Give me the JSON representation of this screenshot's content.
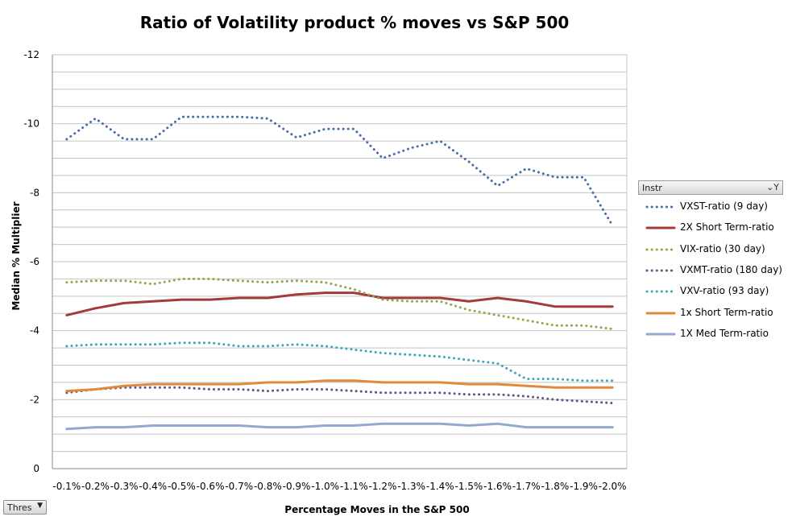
{
  "chart_data": {
    "type": "line",
    "title": "Ratio of  Volatility product % moves vs S&P 500",
    "xlabel": "Percentage  Moves in  the S&P 500",
    "ylabel": "Median % Multiplier",
    "y_axis_reversed": true,
    "ylim": [
      0,
      -12
    ],
    "y_ticks": [
      "-12",
      "-10",
      "-8",
      "-6",
      "-4",
      "-2",
      "0"
    ],
    "grid": true,
    "legend_position": "right",
    "legend_header": "Instr",
    "categories": [
      "-0.1%",
      "-0.2%",
      "-0.3%",
      "-0.4%",
      "-0.5%",
      "-0.6%",
      "-0.7%",
      "-0.8%",
      "-0.9%",
      "-1.0%",
      "-1.1%",
      "-1.2%",
      "-1.3%",
      "-1.4%",
      "-1.5%",
      "-1.6%",
      "-1.7%",
      "-1.8%",
      "-1.9%",
      "-2.0%"
    ],
    "series": [
      {
        "name": "VXST-ratio (9 day)",
        "style": "dotted",
        "color": "#4a6fa8",
        "values": [
          -9.55,
          -10.15,
          -9.55,
          -9.55,
          -10.2,
          -10.2,
          -10.2,
          -10.15,
          -9.6,
          -9.85,
          -9.85,
          -9.0,
          -9.3,
          -9.5,
          -8.9,
          -8.2,
          -8.7,
          -8.45,
          -8.45,
          -7.05
        ]
      },
      {
        "name": "2X Short Term-ratio",
        "style": "solid",
        "color": "#a33b3b",
        "values": [
          -4.45,
          -4.65,
          -4.8,
          -4.85,
          -4.9,
          -4.9,
          -4.95,
          -4.95,
          -5.05,
          -5.1,
          -5.1,
          -4.95,
          -4.95,
          -4.95,
          -4.85,
          -4.95,
          -4.85,
          -4.7,
          -4.7,
          -4.7
        ]
      },
      {
        "name": "VIX-ratio (30 day)",
        "style": "dotted",
        "color": "#92a54a",
        "values": [
          -5.4,
          -5.45,
          -5.45,
          -5.35,
          -5.5,
          -5.5,
          -5.45,
          -5.4,
          -5.45,
          -5.4,
          -5.2,
          -4.9,
          -4.85,
          -4.85,
          -4.6,
          -4.45,
          -4.3,
          -4.15,
          -4.15,
          -4.05
        ]
      },
      {
        "name": "VXMT-ratio (180 day)",
        "style": "dotted",
        "color": "#6a5487",
        "values": [
          -2.2,
          -2.3,
          -2.35,
          -2.35,
          -2.35,
          -2.3,
          -2.3,
          -2.25,
          -2.3,
          -2.3,
          -2.25,
          -2.2,
          -2.2,
          -2.2,
          -2.15,
          -2.15,
          -2.1,
          -2.0,
          -1.95,
          -1.9
        ]
      },
      {
        "name": "VXV-ratio (93 day)",
        "style": "dotted",
        "color": "#3ea7b5",
        "values": [
          -3.55,
          -3.6,
          -3.6,
          -3.6,
          -3.65,
          -3.65,
          -3.55,
          -3.55,
          -3.6,
          -3.55,
          -3.45,
          -3.35,
          -3.3,
          -3.25,
          -3.15,
          -3.05,
          -2.6,
          -2.6,
          -2.55,
          -2.55
        ]
      },
      {
        "name": "1x Short Term-ratio",
        "style": "solid",
        "color": "#e08a3c",
        "values": [
          -2.25,
          -2.3,
          -2.4,
          -2.45,
          -2.45,
          -2.45,
          -2.45,
          -2.5,
          -2.5,
          -2.55,
          -2.55,
          -2.5,
          -2.5,
          -2.5,
          -2.45,
          -2.45,
          -2.4,
          -2.35,
          -2.35,
          -2.35
        ]
      },
      {
        "name": "1X Med Term-ratio",
        "style": "solid",
        "color": "#93a9cf",
        "values": [
          -1.15,
          -1.2,
          -1.2,
          -1.25,
          -1.25,
          -1.25,
          -1.25,
          -1.2,
          -1.2,
          -1.25,
          -1.25,
          -1.3,
          -1.3,
          -1.3,
          -1.25,
          -1.3,
          -1.2,
          -1.2,
          -1.2,
          -1.2
        ]
      }
    ]
  },
  "controls": {
    "thres_label": "Thres",
    "dropdown_arrow": "▼",
    "filter_icon": "⌄Y"
  }
}
